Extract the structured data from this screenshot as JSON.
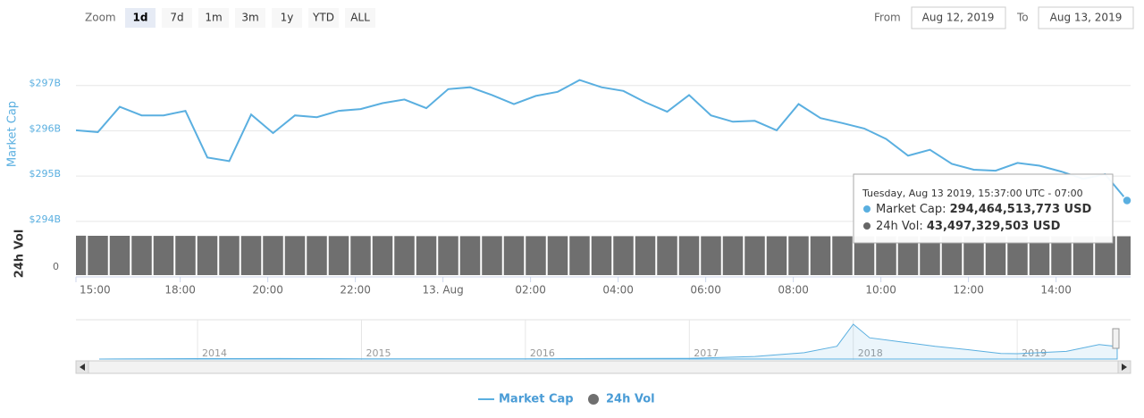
{
  "toolbar": {
    "zoom_label": "Zoom",
    "buttons": [
      "1d",
      "7d",
      "1m",
      "3m",
      "1y",
      "YTD",
      "ALL"
    ],
    "selected": "1d",
    "from_label": "From",
    "from": "Aug 12, 2019",
    "to_label": "To",
    "to": "Aug 13, 2019"
  },
  "legend_position": "bottom",
  "chart_data": [
    {
      "type": "line",
      "y_label": "Market Cap",
      "x": [
        15.62,
        16.12,
        16.62,
        17.12,
        17.62,
        18.12,
        18.62,
        19.12,
        19.62,
        20.12,
        20.62,
        21.12,
        21.62,
        22.12,
        22.62,
        23.12,
        23.62,
        24.12,
        24.62,
        25.12,
        25.62,
        26.12,
        26.62,
        27.12,
        27.62,
        28.12,
        28.62,
        29.12,
        29.62,
        30.12,
        30.62,
        31.12,
        31.62,
        32.12,
        32.62,
        33.12,
        33.62,
        34.12,
        34.62,
        35.12,
        35.62,
        36.12,
        36.62,
        37.12,
        37.62,
        38.12,
        38.62,
        39.12,
        39.62
      ],
      "xlim": [
        15.62,
        39.62
      ],
      "xticks": [
        {
          "value": 15,
          "label": "15:00"
        },
        {
          "value": 18,
          "label": "18:00"
        },
        {
          "value": 20,
          "label": "20:00"
        },
        {
          "value": 22,
          "label": "22:00"
        },
        {
          "value": 24,
          "label": "13. Aug"
        },
        {
          "value": 26,
          "label": "02:00"
        },
        {
          "value": 28,
          "label": "04:00"
        },
        {
          "value": 30,
          "label": "06:00"
        },
        {
          "value": 32,
          "label": "08:00"
        },
        {
          "value": 34,
          "label": "10:00"
        },
        {
          "value": 36,
          "label": "12:00"
        },
        {
          "value": 38,
          "label": "14:00"
        }
      ],
      "ylim": [
        293.8,
        298
      ],
      "yticks": [
        {
          "value": 294,
          "label": "$294B"
        },
        {
          "value": 295,
          "label": "$295B"
        },
        {
          "value": 296,
          "label": "$296B"
        },
        {
          "value": 297,
          "label": "$297B"
        }
      ],
      "grid": true,
      "series": [
        {
          "name": "Market Cap",
          "color": "#5aafe0",
          "values": [
            296.01,
            295.97,
            296.53,
            296.34,
            296.34,
            296.44,
            295.41,
            295.33,
            296.36,
            295.95,
            296.34,
            296.3,
            296.44,
            296.48,
            296.61,
            296.69,
            296.5,
            296.92,
            296.96,
            296.79,
            296.59,
            296.77,
            296.86,
            297.12,
            296.96,
            296.88,
            296.63,
            296.42,
            296.79,
            296.34,
            296.2,
            296.22,
            296.01,
            296.59,
            296.28,
            296.17,
            296.05,
            295.82,
            295.45,
            295.58,
            295.27,
            295.14,
            295.12,
            295.29,
            295.23,
            295.1,
            294.94,
            295.04,
            294.46
          ]
        }
      ],
      "tooltip": {
        "date": "Tuesday, Aug 13 2019, 15:37:00 UTC - 07:00",
        "rows": [
          {
            "label": "Market Cap:",
            "value": "294,464,513,773 USD"
          },
          {
            "label": "24h Vol:",
            "value": "43,497,329,503 USD"
          }
        ]
      }
    },
    {
      "type": "bar",
      "y_label": "24h Vol",
      "x": [
        15.62,
        16.12,
        16.62,
        17.12,
        17.62,
        18.12,
        18.62,
        19.12,
        19.62,
        20.12,
        20.62,
        21.12,
        21.62,
        22.12,
        22.62,
        23.12,
        23.62,
        24.12,
        24.62,
        25.12,
        25.62,
        26.12,
        26.62,
        27.12,
        27.62,
        28.12,
        28.62,
        29.12,
        29.62,
        30.12,
        30.62,
        31.12,
        31.62,
        32.12,
        32.62,
        33.12,
        33.62,
        34.12,
        34.62,
        35.12,
        35.62,
        36.12,
        36.62,
        37.12,
        37.62,
        38.12,
        38.62,
        39.12,
        39.62
      ],
      "xlim": [
        15.62,
        39.62
      ],
      "ylim": [
        0,
        46000000000
      ],
      "yticks": [
        0
      ],
      "series": [
        {
          "name": "24h Vol",
          "color": "#6f6f6f",
          "values": [
            44100000000,
            44000000000,
            44000000000,
            43900000000,
            43900000000,
            43900000000,
            43800000000,
            43800000000,
            43800000000,
            43800000000,
            43700000000,
            43700000000,
            43700000000,
            43700000000,
            43700000000,
            43700000000,
            43600000000,
            43600000000,
            43600000000,
            43600000000,
            43600000000,
            43600000000,
            43600000000,
            43600000000,
            43600000000,
            43600000000,
            43600000000,
            43600000000,
            43600000000,
            43500000000,
            43500000000,
            43500000000,
            43500000000,
            43500000000,
            43500000000,
            43500000000,
            43500000000,
            43500000000,
            43500000000,
            43500000000,
            43500000000,
            43500000000,
            43500000000,
            43500000000,
            43500000000,
            43500000000,
            43500000000,
            43500000000,
            43497329503
          ]
        }
      ]
    },
    {
      "type": "area",
      "x": [
        2013.4,
        2014,
        2014.5,
        2015,
        2015.5,
        2016,
        2016.5,
        2017,
        2017.4,
        2017.7,
        2017.9,
        2018,
        2018.1,
        2018.3,
        2018.5,
        2018.7,
        2018.9,
        2019,
        2019.3,
        2019.5,
        2019.61
      ],
      "xlim": [
        2013.34,
        2019.61
      ],
      "xticks": [
        2014,
        2015,
        2016,
        2017,
        2018,
        2019
      ],
      "ylim": [
        0,
        840
      ],
      "series": [
        {
          "color": "#5aafe0",
          "values": [
            1,
            10,
            12,
            6,
            5,
            7,
            12,
            17,
            60,
            150,
            300,
            820,
            500,
            400,
            300,
            220,
            130,
            125,
            180,
            340,
            294
          ]
        }
      ]
    }
  ]
}
